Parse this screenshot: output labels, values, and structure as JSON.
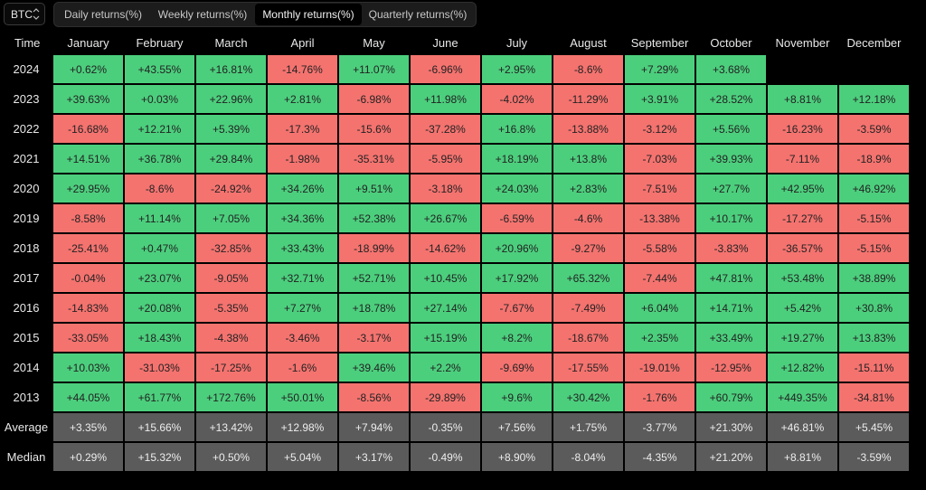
{
  "toolbar": {
    "asset": "BTC",
    "tabs": [
      {
        "label": "Daily returns(%)",
        "active": false
      },
      {
        "label": "Weekly returns(%)",
        "active": false
      },
      {
        "label": "Monthly returns(%)",
        "active": true
      },
      {
        "label": "Quarterly returns(%)",
        "active": false
      }
    ]
  },
  "colors": {
    "positive": "#4ccf7d",
    "negative": "#f4736f",
    "stat": "#5b5b5b",
    "background": "#000000"
  },
  "table": {
    "time_header": "Time",
    "months": [
      "January",
      "February",
      "March",
      "April",
      "May",
      "June",
      "July",
      "August",
      "September",
      "October",
      "November",
      "December"
    ],
    "rows": [
      {
        "label": "2024",
        "values": [
          "+0.62%",
          "+43.55%",
          "+16.81%",
          "-14.76%",
          "+11.07%",
          "-6.96%",
          "+2.95%",
          "-8.6%",
          "+7.29%",
          "+3.68%",
          "",
          ""
        ]
      },
      {
        "label": "2023",
        "values": [
          "+39.63%",
          "+0.03%",
          "+22.96%",
          "+2.81%",
          "-6.98%",
          "+11.98%",
          "-4.02%",
          "-11.29%",
          "+3.91%",
          "+28.52%",
          "+8.81%",
          "+12.18%"
        ]
      },
      {
        "label": "2022",
        "values": [
          "-16.68%",
          "+12.21%",
          "+5.39%",
          "-17.3%",
          "-15.6%",
          "-37.28%",
          "+16.8%",
          "-13.88%",
          "-3.12%",
          "+5.56%",
          "-16.23%",
          "-3.59%"
        ]
      },
      {
        "label": "2021",
        "values": [
          "+14.51%",
          "+36.78%",
          "+29.84%",
          "-1.98%",
          "-35.31%",
          "-5.95%",
          "+18.19%",
          "+13.8%",
          "-7.03%",
          "+39.93%",
          "-7.11%",
          "-18.9%"
        ]
      },
      {
        "label": "2020",
        "values": [
          "+29.95%",
          "-8.6%",
          "-24.92%",
          "+34.26%",
          "+9.51%",
          "-3.18%",
          "+24.03%",
          "+2.83%",
          "-7.51%",
          "+27.7%",
          "+42.95%",
          "+46.92%"
        ]
      },
      {
        "label": "2019",
        "values": [
          "-8.58%",
          "+11.14%",
          "+7.05%",
          "+34.36%",
          "+52.38%",
          "+26.67%",
          "-6.59%",
          "-4.6%",
          "-13.38%",
          "+10.17%",
          "-17.27%",
          "-5.15%"
        ]
      },
      {
        "label": "2018",
        "values": [
          "-25.41%",
          "+0.47%",
          "-32.85%",
          "+33.43%",
          "-18.99%",
          "-14.62%",
          "+20.96%",
          "-9.27%",
          "-5.58%",
          "-3.83%",
          "-36.57%",
          "-5.15%"
        ]
      },
      {
        "label": "2017",
        "values": [
          "-0.04%",
          "+23.07%",
          "-9.05%",
          "+32.71%",
          "+52.71%",
          "+10.45%",
          "+17.92%",
          "+65.32%",
          "-7.44%",
          "+47.81%",
          "+53.48%",
          "+38.89%"
        ]
      },
      {
        "label": "2016",
        "values": [
          "-14.83%",
          "+20.08%",
          "-5.35%",
          "+7.27%",
          "+18.78%",
          "+27.14%",
          "-7.67%",
          "-7.49%",
          "+6.04%",
          "+14.71%",
          "+5.42%",
          "+30.8%"
        ]
      },
      {
        "label": "2015",
        "values": [
          "-33.05%",
          "+18.43%",
          "-4.38%",
          "-3.46%",
          "-3.17%",
          "+15.19%",
          "+8.2%",
          "-18.67%",
          "+2.35%",
          "+33.49%",
          "+19.27%",
          "+13.83%"
        ]
      },
      {
        "label": "2014",
        "values": [
          "+10.03%",
          "-31.03%",
          "-17.25%",
          "-1.6%",
          "+39.46%",
          "+2.2%",
          "-9.69%",
          "-17.55%",
          "-19.01%",
          "-12.95%",
          "+12.82%",
          "-15.11%"
        ]
      },
      {
        "label": "2013",
        "values": [
          "+44.05%",
          "+61.77%",
          "+172.76%",
          "+50.01%",
          "-8.56%",
          "-29.89%",
          "+9.6%",
          "+30.42%",
          "-1.76%",
          "+60.79%",
          "+449.35%",
          "-34.81%"
        ]
      }
    ],
    "stats": [
      {
        "label": "Average",
        "values": [
          "+3.35%",
          "+15.66%",
          "+13.42%",
          "+12.98%",
          "+7.94%",
          "-0.35%",
          "+7.56%",
          "+1.75%",
          "-3.77%",
          "+21.30%",
          "+46.81%",
          "+5.45%"
        ]
      },
      {
        "label": "Median",
        "values": [
          "+0.29%",
          "+15.32%",
          "+0.50%",
          "+5.04%",
          "+3.17%",
          "-0.49%",
          "+8.90%",
          "-8.04%",
          "-4.35%",
          "+21.20%",
          "+8.81%",
          "-3.59%"
        ]
      }
    ]
  }
}
